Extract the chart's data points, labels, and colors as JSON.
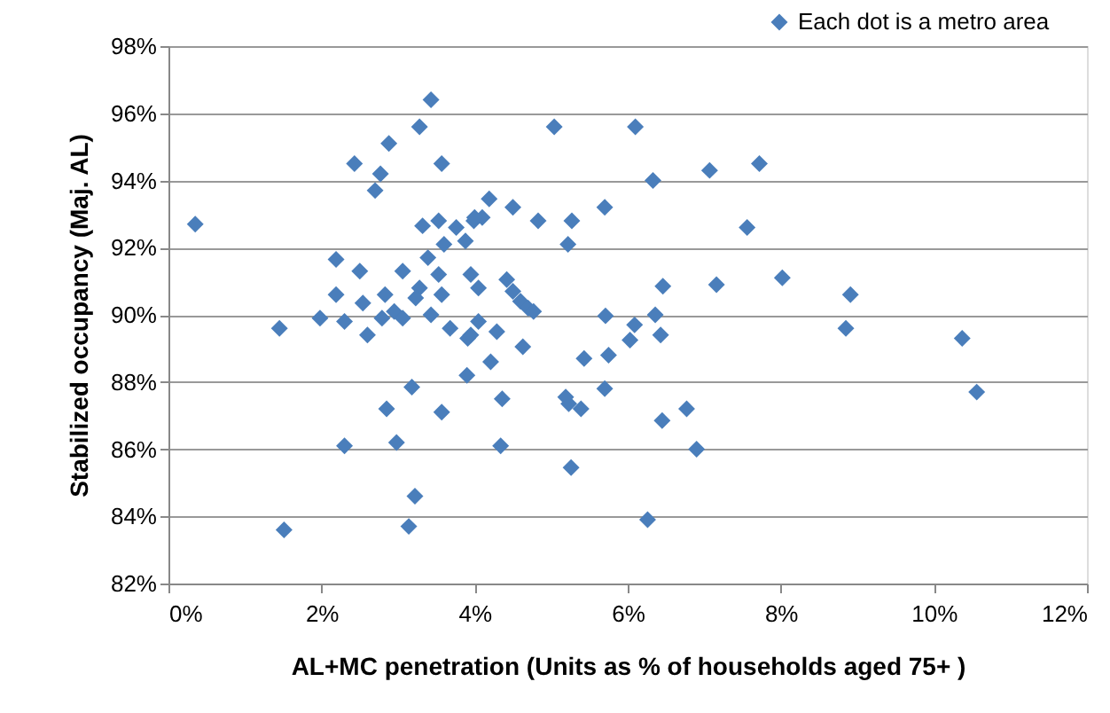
{
  "chart_data": {
    "type": "scatter",
    "xlabel": "AL+MC penetration (Units as % of households aged 75+ )",
    "ylabel": "Stabilized occupancy (Maj. AL)",
    "xlim": [
      0,
      12
    ],
    "ylim": [
      82,
      98
    ],
    "xticks": [
      {
        "value": 0,
        "label": "0%"
      },
      {
        "value": 2,
        "label": "2%"
      },
      {
        "value": 4,
        "label": "4%"
      },
      {
        "value": 6,
        "label": "6%"
      },
      {
        "value": 8,
        "label": "8%"
      },
      {
        "value": 10,
        "label": "10%"
      },
      {
        "value": 12,
        "label": "12%"
      }
    ],
    "yticks": [
      {
        "value": 82,
        "label": "82%"
      },
      {
        "value": 84,
        "label": "84%"
      },
      {
        "value": 86,
        "label": "86%"
      },
      {
        "value": 88,
        "label": "88%"
      },
      {
        "value": 90,
        "label": "90%"
      },
      {
        "value": 92,
        "label": "92%"
      },
      {
        "value": 94,
        "label": "94%"
      },
      {
        "value": 96,
        "label": "96%"
      },
      {
        "value": 98,
        "label": "98%"
      }
    ],
    "grid": "y",
    "legend": "top right",
    "marker": "diamond",
    "series": [
      {
        "name": "Each dot is a metro area",
        "color": "#4a7ebb",
        "x": [
          0.35,
          1.45,
          1.51,
          3.43,
          3.28,
          2.88,
          3.57,
          2.43,
          2.77,
          2.7,
          3.32,
          3.53,
          3.76,
          3.88,
          3.99,
          3.6,
          2.19,
          2.5,
          3.06,
          3.39,
          3.53,
          3.57,
          3.28,
          3.23,
          2.19,
          2.54,
          2.83,
          1.98,
          2.3,
          2.6,
          2.79,
          2.95,
          3.06,
          3.43,
          3.68,
          3.91,
          3.9,
          3.18,
          2.85,
          3.57,
          2.3,
          2.98,
          3.22,
          3.14,
          4.19,
          4.5,
          4.83,
          5.27,
          5.22,
          5.7,
          5.04,
          6.1,
          6.33,
          7.07,
          7.72,
          7.56,
          7.16,
          6.46,
          8.02,
          3.95,
          4.05,
          4.42,
          4.5,
          4.6,
          4.7,
          4.77,
          4.05,
          3.95,
          4.29,
          4.63,
          4.21,
          4.36,
          4.34,
          5.71,
          6.09,
          6.03,
          6.36,
          6.43,
          5.43,
          5.75,
          5.7,
          5.39,
          5.23,
          5.19,
          6.45,
          6.77,
          6.9,
          5.26,
          6.26,
          8.91,
          8.85,
          10.37,
          10.56,
          4.1,
          4.0
        ],
        "values": [
          92.7,
          89.6,
          83.6,
          96.4,
          95.6,
          95.1,
          94.5,
          94.5,
          94.2,
          93.7,
          92.65,
          92.8,
          92.6,
          92.2,
          92.8,
          92.1,
          91.65,
          91.3,
          91.3,
          91.7,
          91.2,
          90.6,
          90.8,
          90.5,
          90.6,
          90.35,
          90.6,
          89.9,
          89.8,
          89.4,
          89.9,
          90.1,
          89.9,
          90.0,
          89.6,
          89.3,
          88.2,
          87.85,
          87.2,
          87.1,
          86.1,
          86.2,
          84.6,
          83.7,
          93.45,
          93.2,
          92.8,
          92.8,
          92.1,
          93.2,
          95.6,
          95.6,
          94.0,
          94.3,
          94.5,
          92.6,
          90.9,
          90.85,
          91.1,
          91.2,
          90.8,
          91.05,
          90.7,
          90.4,
          90.2,
          90.1,
          89.8,
          89.4,
          89.5,
          89.05,
          88.6,
          87.5,
          86.1,
          89.97,
          89.7,
          89.25,
          90.0,
          89.4,
          88.7,
          88.8,
          87.8,
          87.2,
          87.35,
          87.55,
          86.85,
          87.2,
          86.0,
          85.45,
          83.9,
          90.6,
          89.6,
          89.3,
          87.7,
          92.9,
          92.9
        ]
      }
    ]
  }
}
